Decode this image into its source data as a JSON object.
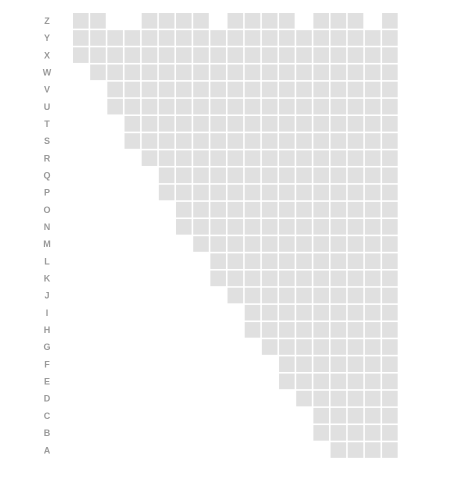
{
  "grid": {
    "cell_color": "#e0e0e0",
    "label_color": "#9a9a9a",
    "columns": 19,
    "rows": [
      {
        "label": "Z",
        "cells": [
          1,
          1,
          0,
          0,
          1,
          1,
          1,
          1,
          0,
          1,
          1,
          1,
          1,
          0,
          1,
          1,
          1,
          0,
          1
        ]
      },
      {
        "label": "Y",
        "cells": [
          1,
          1,
          1,
          1,
          1,
          1,
          1,
          1,
          1,
          1,
          1,
          1,
          1,
          1,
          1,
          1,
          1,
          1,
          1
        ]
      },
      {
        "label": "X",
        "cells": [
          1,
          1,
          1,
          1,
          1,
          1,
          1,
          1,
          1,
          1,
          1,
          1,
          1,
          1,
          1,
          1,
          1,
          1,
          1
        ]
      },
      {
        "label": "W",
        "cells": [
          0,
          1,
          1,
          1,
          1,
          1,
          1,
          1,
          1,
          1,
          1,
          1,
          1,
          1,
          1,
          1,
          1,
          1,
          1
        ]
      },
      {
        "label": "V",
        "cells": [
          0,
          0,
          1,
          1,
          1,
          1,
          1,
          1,
          1,
          1,
          1,
          1,
          1,
          1,
          1,
          1,
          1,
          1,
          1
        ]
      },
      {
        "label": "U",
        "cells": [
          0,
          0,
          1,
          1,
          1,
          1,
          1,
          1,
          1,
          1,
          1,
          1,
          1,
          1,
          1,
          1,
          1,
          1,
          1
        ]
      },
      {
        "label": "T",
        "cells": [
          0,
          0,
          0,
          1,
          1,
          1,
          1,
          1,
          1,
          1,
          1,
          1,
          1,
          1,
          1,
          1,
          1,
          1,
          1
        ]
      },
      {
        "label": "S",
        "cells": [
          0,
          0,
          0,
          1,
          1,
          1,
          1,
          1,
          1,
          1,
          1,
          1,
          1,
          1,
          1,
          1,
          1,
          1,
          1
        ]
      },
      {
        "label": "R",
        "cells": [
          0,
          0,
          0,
          0,
          1,
          1,
          1,
          1,
          1,
          1,
          1,
          1,
          1,
          1,
          1,
          1,
          1,
          1,
          1
        ]
      },
      {
        "label": "Q",
        "cells": [
          0,
          0,
          0,
          0,
          0,
          1,
          1,
          1,
          1,
          1,
          1,
          1,
          1,
          1,
          1,
          1,
          1,
          1,
          1
        ]
      },
      {
        "label": "P",
        "cells": [
          0,
          0,
          0,
          0,
          0,
          1,
          1,
          1,
          1,
          1,
          1,
          1,
          1,
          1,
          1,
          1,
          1,
          1,
          1
        ]
      },
      {
        "label": "O",
        "cells": [
          0,
          0,
          0,
          0,
          0,
          0,
          1,
          1,
          1,
          1,
          1,
          1,
          1,
          1,
          1,
          1,
          1,
          1,
          1
        ]
      },
      {
        "label": "N",
        "cells": [
          0,
          0,
          0,
          0,
          0,
          0,
          1,
          1,
          1,
          1,
          1,
          1,
          1,
          1,
          1,
          1,
          1,
          1,
          1
        ]
      },
      {
        "label": "M",
        "cells": [
          0,
          0,
          0,
          0,
          0,
          0,
          0,
          1,
          1,
          1,
          1,
          1,
          1,
          1,
          1,
          1,
          1,
          1,
          1
        ]
      },
      {
        "label": "L",
        "cells": [
          0,
          0,
          0,
          0,
          0,
          0,
          0,
          0,
          1,
          1,
          1,
          1,
          1,
          1,
          1,
          1,
          1,
          1,
          1
        ]
      },
      {
        "label": "K",
        "cells": [
          0,
          0,
          0,
          0,
          0,
          0,
          0,
          0,
          1,
          1,
          1,
          1,
          1,
          1,
          1,
          1,
          1,
          1,
          1
        ]
      },
      {
        "label": "J",
        "cells": [
          0,
          0,
          0,
          0,
          0,
          0,
          0,
          0,
          0,
          1,
          1,
          1,
          1,
          1,
          1,
          1,
          1,
          1,
          1
        ]
      },
      {
        "label": "I",
        "cells": [
          0,
          0,
          0,
          0,
          0,
          0,
          0,
          0,
          0,
          0,
          1,
          1,
          1,
          1,
          1,
          1,
          1,
          1,
          1
        ]
      },
      {
        "label": "H",
        "cells": [
          0,
          0,
          0,
          0,
          0,
          0,
          0,
          0,
          0,
          0,
          1,
          1,
          1,
          1,
          1,
          1,
          1,
          1,
          1
        ]
      },
      {
        "label": "G",
        "cells": [
          0,
          0,
          0,
          0,
          0,
          0,
          0,
          0,
          0,
          0,
          0,
          1,
          1,
          1,
          1,
          1,
          1,
          1,
          1
        ]
      },
      {
        "label": "F",
        "cells": [
          0,
          0,
          0,
          0,
          0,
          0,
          0,
          0,
          0,
          0,
          0,
          0,
          1,
          1,
          1,
          1,
          1,
          1,
          1
        ]
      },
      {
        "label": "E",
        "cells": [
          0,
          0,
          0,
          0,
          0,
          0,
          0,
          0,
          0,
          0,
          0,
          0,
          1,
          1,
          1,
          1,
          1,
          1,
          1
        ]
      },
      {
        "label": "D",
        "cells": [
          0,
          0,
          0,
          0,
          0,
          0,
          0,
          0,
          0,
          0,
          0,
          0,
          0,
          1,
          1,
          1,
          1,
          1,
          1
        ]
      },
      {
        "label": "C",
        "cells": [
          0,
          0,
          0,
          0,
          0,
          0,
          0,
          0,
          0,
          0,
          0,
          0,
          0,
          0,
          1,
          1,
          1,
          1,
          1
        ]
      },
      {
        "label": "B",
        "cells": [
          0,
          0,
          0,
          0,
          0,
          0,
          0,
          0,
          0,
          0,
          0,
          0,
          0,
          0,
          1,
          1,
          1,
          1,
          1
        ]
      },
      {
        "label": "A",
        "cells": [
          0,
          0,
          0,
          0,
          0,
          0,
          0,
          0,
          0,
          0,
          0,
          0,
          0,
          0,
          0,
          1,
          1,
          1,
          1
        ]
      }
    ]
  }
}
